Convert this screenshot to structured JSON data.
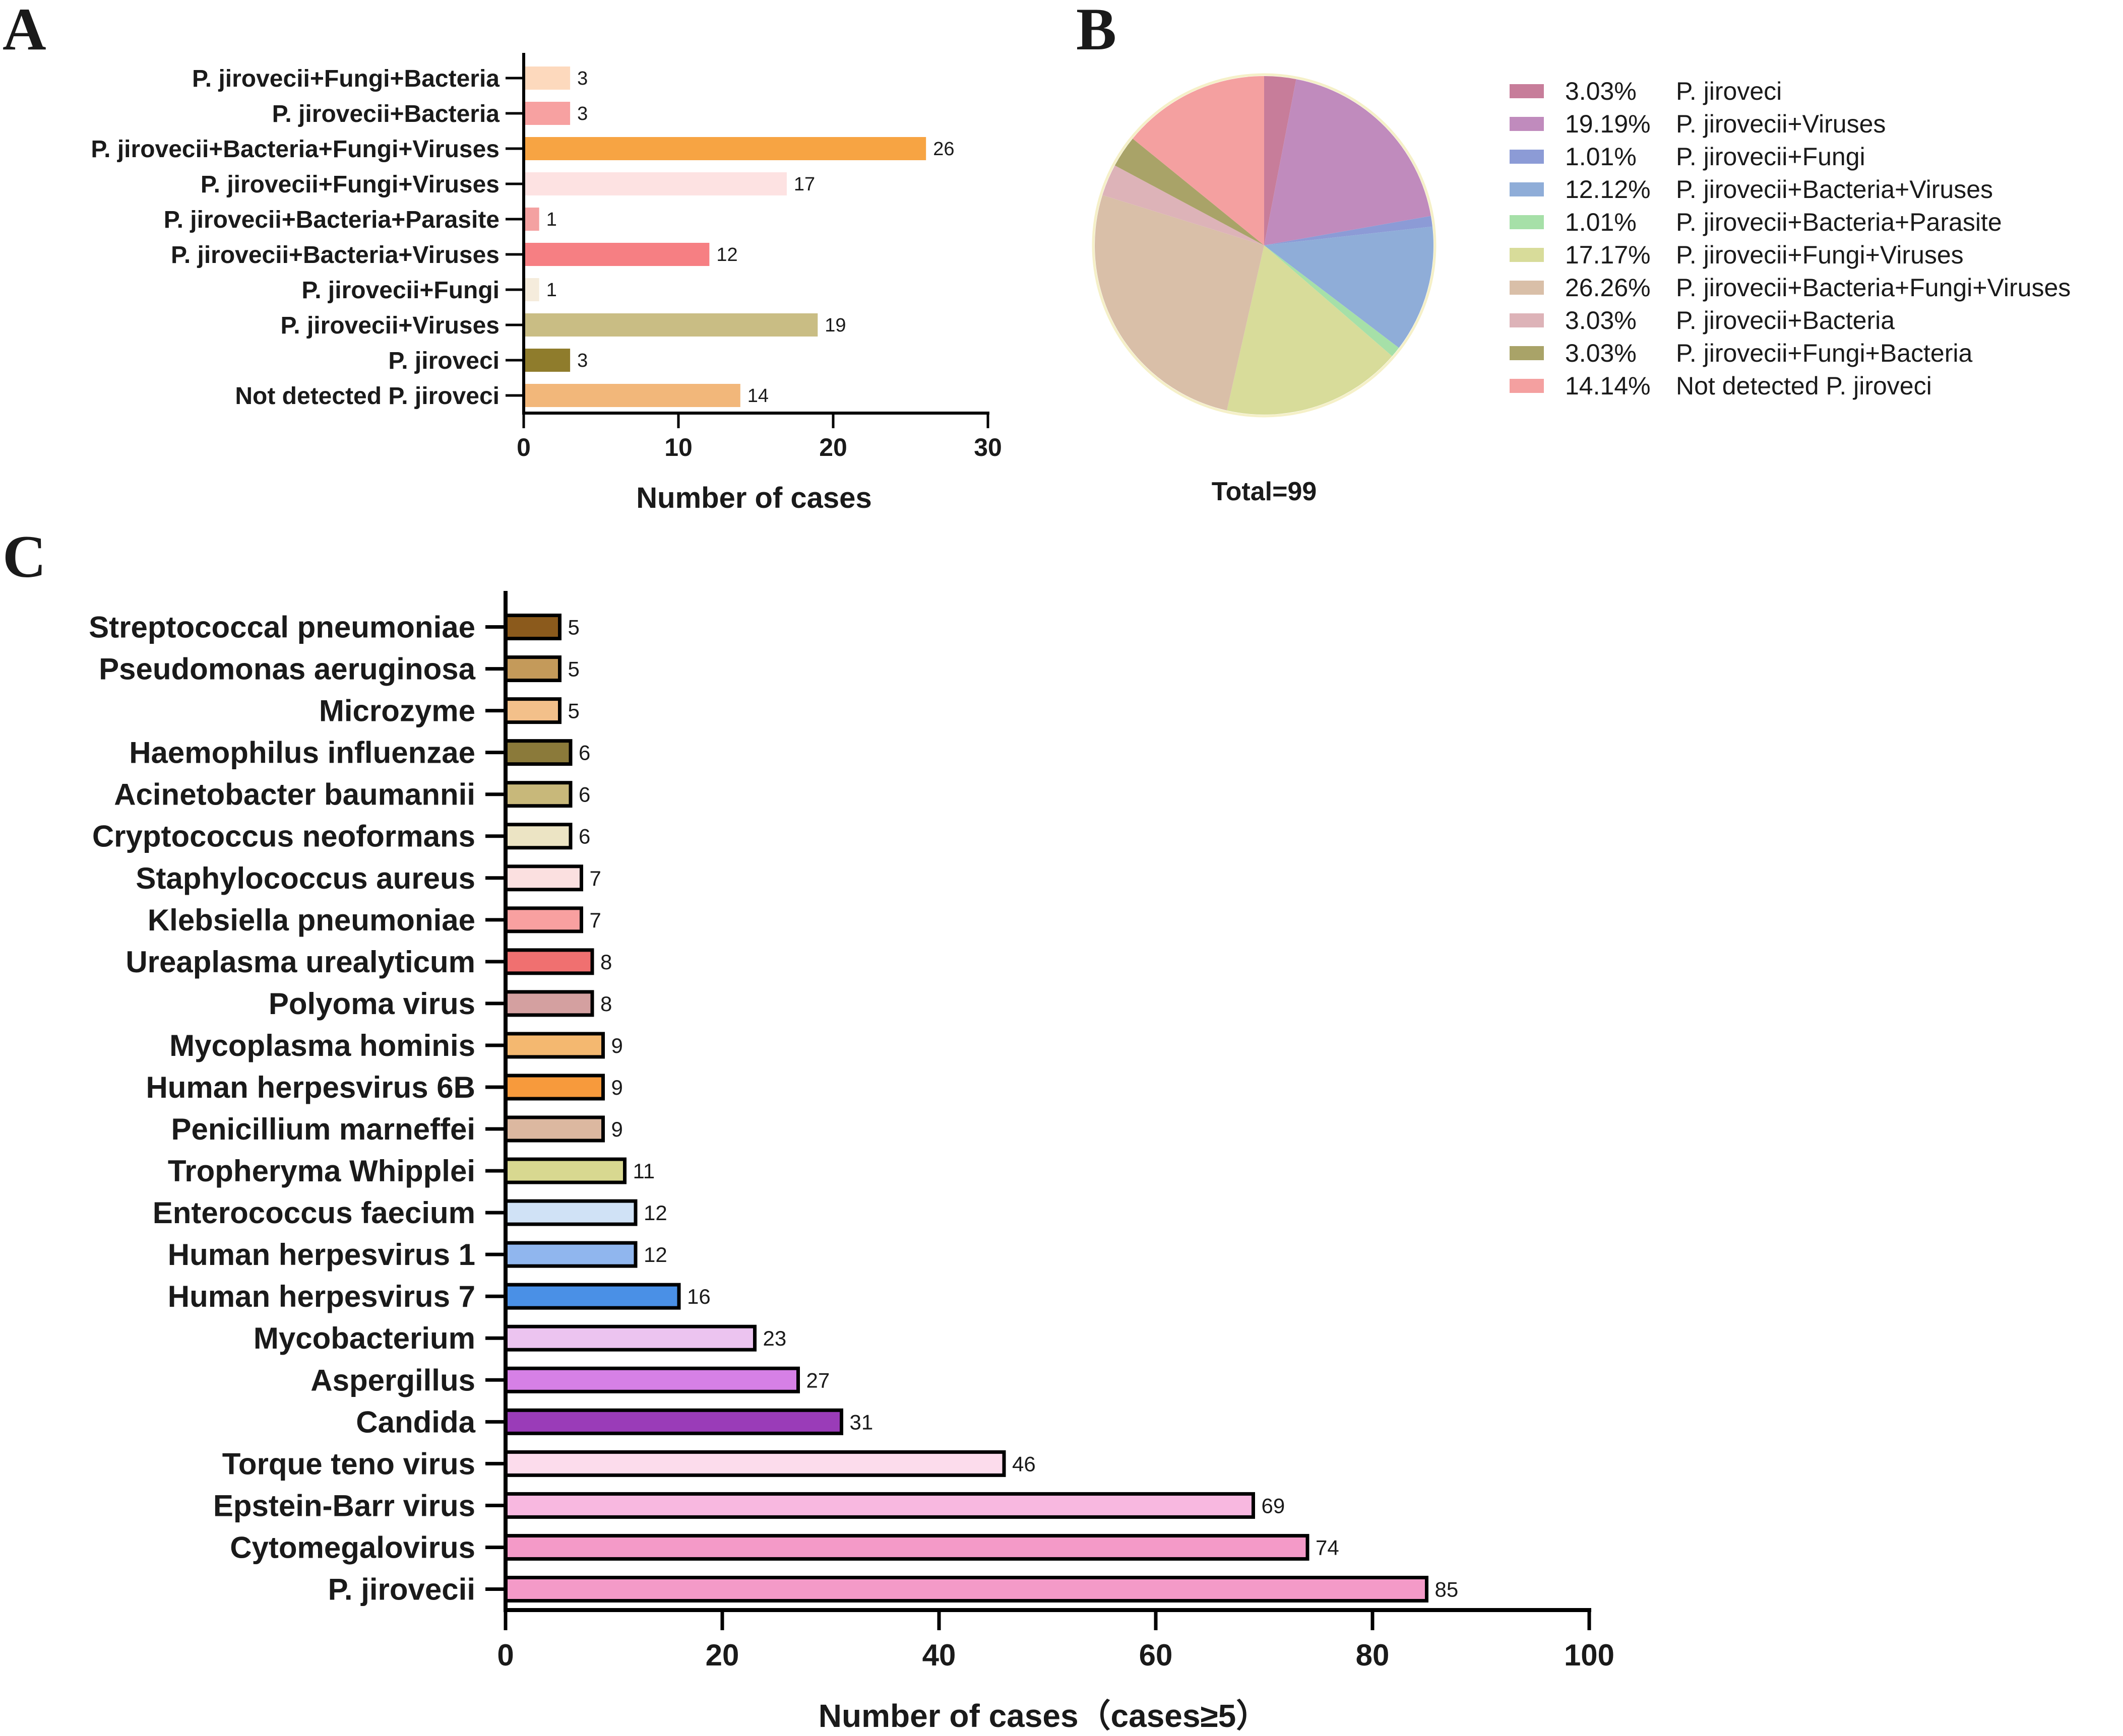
{
  "panels": {
    "a": "A",
    "b": "B",
    "c": "C"
  },
  "chart_data": [
    {
      "type": "bar",
      "orientation": "horizontal",
      "panel": "A",
      "categories": [
        "P. jirovecii+Fungi+Bacteria",
        "P. jirovecii+Bacteria",
        "P. jirovecii+Bacteria+Fungi+Viruses",
        "P. jirovecii+Fungi+Viruses",
        "P. jirovecii+Bacteria+Parasite",
        "P. jirovecii+Bacteria+Viruses",
        "P. jirovecii+Fungi",
        "P. jirovecii+Viruses",
        "P. jiroveci",
        "Not detected P. jiroveci"
      ],
      "values": [
        3,
        3,
        26,
        17,
        1,
        12,
        1,
        19,
        3,
        14
      ],
      "colors": [
        "#fdd9bd",
        "#f7a1a1",
        "#f7a443",
        "#fde2e2",
        "#f4a1a1",
        "#f67f83",
        "#f5ecdc",
        "#c9bd84",
        "#8f7c2c",
        "#f2b77a"
      ],
      "xlabel": "Number of cases",
      "xlim": [
        0,
        30
      ],
      "xticks": [
        0,
        10,
        20,
        30
      ]
    },
    {
      "type": "pie",
      "panel": "B",
      "labels": [
        "P. jiroveci",
        "P. jirovecii+Viruses",
        "P. jirovecii+Fungi",
        "P. jirovecii+Bacteria+Viruses",
        "P. jirovecii+Bacteria+Parasite",
        "P. jirovecii+Fungi+Viruses",
        "P. jirovecii+Bacteria+Fungi+Viruses",
        "P. jirovecii+Bacteria",
        "P. jirovecii+Fungi+Bacteria",
        "Not detected P. jiroveci"
      ],
      "percent_labels": [
        "3.03%",
        "19.19%",
        "1.01%",
        "12.12%",
        "1.01%",
        "17.17%",
        "26.26%",
        "3.03%",
        "3.03%",
        "14.14%"
      ],
      "values": [
        3.03,
        19.19,
        1.01,
        12.12,
        1.01,
        17.17,
        26.26,
        3.03,
        3.03,
        14.14
      ],
      "colors": [
        "#c77d9a",
        "#c08bbd",
        "#8c9bd6",
        "#8fadd8",
        "#a6e0a8",
        "#d8dc9a",
        "#d9bfa8",
        "#ddb3b8",
        "#a9a368",
        "#f4a0a0"
      ],
      "total_label": "Total=99",
      "legend_position": "right"
    },
    {
      "type": "bar",
      "orientation": "horizontal",
      "panel": "C",
      "categories": [
        "Streptococcal pneumoniae",
        "Pseudomonas aeruginosa",
        "Microzyme",
        "Haemophilus influenzae",
        "Acinetobacter baumannii",
        "Cryptococcus neoformans",
        "Staphylococcus aureus",
        "Klebsiella pneumoniae",
        "Ureaplasma urealyticum",
        "Polyoma virus",
        "Mycoplasma hominis",
        "Human herpesvirus 6B",
        "Penicillium marneffei",
        "Tropheryma Whipplei",
        "Enterococcus faecium",
        "Human herpesvirus 1",
        "Human herpesvirus 7",
        "Mycobacterium",
        "Aspergillus",
        "Candida",
        "Torque teno virus",
        "Epstein-Barr virus",
        "Cytomegalovirus",
        "P. jirovecii"
      ],
      "values": [
        5,
        5,
        5,
        6,
        6,
        6,
        7,
        7,
        8,
        8,
        9,
        9,
        9,
        11,
        12,
        12,
        16,
        23,
        27,
        31,
        46,
        69,
        74,
        85
      ],
      "colors": [
        "#8b5a1c",
        "#c49a5a",
        "#f3c08a",
        "#8b7a3a",
        "#c8b87a",
        "#ece4c4",
        "#fbe0e0",
        "#f8a0a0",
        "#f07070",
        "#d4a0a0",
        "#f4b870",
        "#f79a3c",
        "#dcb8a0",
        "#d8d890",
        "#d0e2f6",
        "#90b6ee",
        "#4a90e6",
        "#ecc4f0",
        "#d680e6",
        "#9a3cb8",
        "#fcdcec",
        "#f8b8e0",
        "#f49ac8",
        "#f49ac8"
      ],
      "xlabel": "Number of cases（cases≥5）",
      "xlim": [
        0,
        100
      ],
      "xticks": [
        0,
        20,
        40,
        60,
        80,
        100
      ]
    }
  ]
}
